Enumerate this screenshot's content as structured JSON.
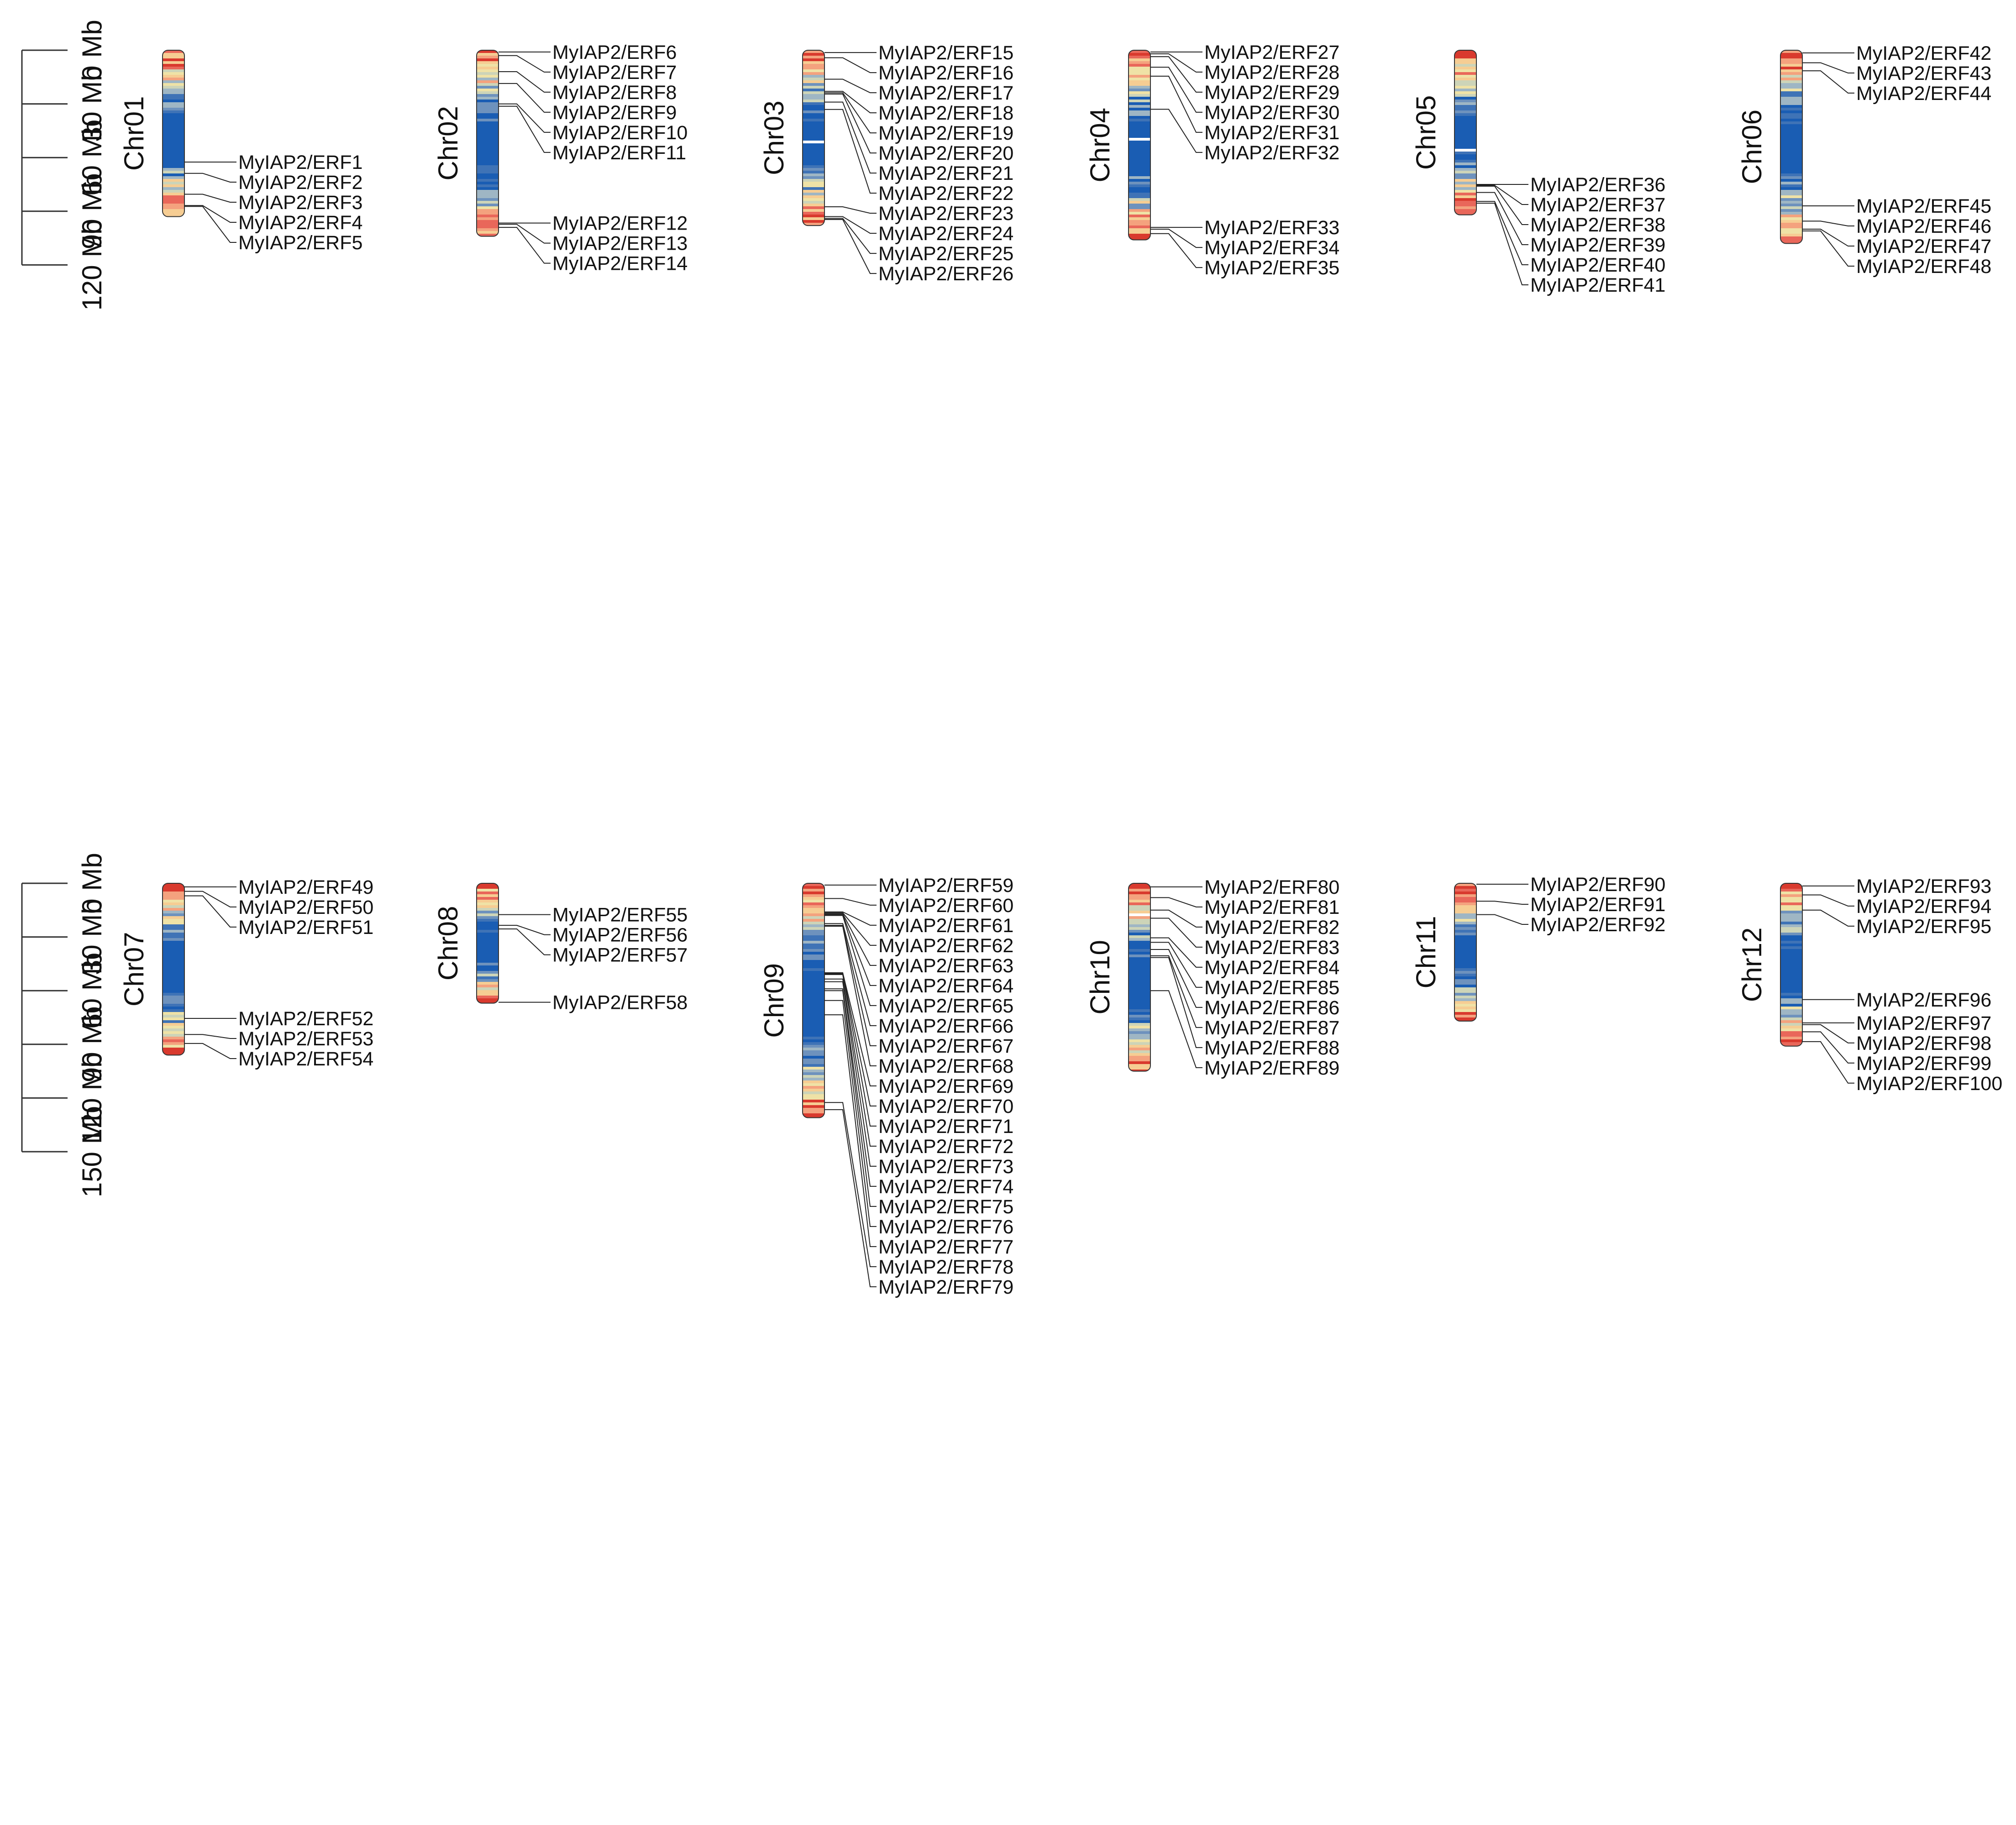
{
  "scales": [
    {
      "name": "top",
      "ticks": [
        "0 Mb",
        "30 Mb",
        "60 Mb",
        "90 Mb",
        "120 Mb"
      ]
    },
    {
      "name": "bottom",
      "ticks": [
        "0 Mb",
        "30 Mb",
        "60 Mb",
        "90 Mb",
        "120 Mb",
        "150 Mb"
      ]
    }
  ],
  "colors": {
    "density_palette": [
      "#1a5db3",
      "#3f73b6",
      "#6e92bd",
      "#9fb6c4",
      "#cdd4b8",
      "#efe2a6",
      "#f6cd93",
      "#f4a27e",
      "#e9675a",
      "#d93a2e"
    ],
    "gap": "#ffffff",
    "outline": "#333333",
    "text": "#111111"
  },
  "chromosomes": [
    {
      "name": "Chr01",
      "length_mb": 93,
      "genes": [
        {
          "label": "MyIAP2/ERF1",
          "pos_mb": 62.5
        },
        {
          "label": "MyIAP2/ERF2",
          "pos_mb": 68.8
        },
        {
          "label": "MyIAP2/ERF3",
          "pos_mb": 80.5
        },
        {
          "label": "MyIAP2/ERF4",
          "pos_mb": 86.8
        },
        {
          "label": "MyIAP2/ERF5",
          "pos_mb": 87.3
        }
      ]
    },
    {
      "name": "Chr02",
      "length_mb": 104,
      "genes": [
        {
          "label": "MyIAP2/ERF6",
          "pos_mb": 1.0
        },
        {
          "label": "MyIAP2/ERF7",
          "pos_mb": 3.0
        },
        {
          "label": "MyIAP2/ERF8",
          "pos_mb": 12.0
        },
        {
          "label": "MyIAP2/ERF9",
          "pos_mb": 18.6
        },
        {
          "label": "MyIAP2/ERF10",
          "pos_mb": 30.0
        },
        {
          "label": "MyIAP2/ERF11",
          "pos_mb": 31.3
        },
        {
          "label": "MyIAP2/ERF12",
          "pos_mb": 96.6
        },
        {
          "label": "MyIAP2/ERF13",
          "pos_mb": 97.3
        },
        {
          "label": "MyIAP2/ERF14",
          "pos_mb": 99.0
        }
      ]
    },
    {
      "name": "Chr03",
      "length_mb": 98,
      "genes": [
        {
          "label": "MyIAP2/ERF15",
          "pos_mb": 1.3
        },
        {
          "label": "MyIAP2/ERF16",
          "pos_mb": 4.2
        },
        {
          "label": "MyIAP2/ERF17",
          "pos_mb": 16.2
        },
        {
          "label": "MyIAP2/ERF18",
          "pos_mb": 23.0
        },
        {
          "label": "MyIAP2/ERF19",
          "pos_mb": 23.8
        },
        {
          "label": "MyIAP2/ERF20",
          "pos_mb": 24.5
        },
        {
          "label": "MyIAP2/ERF21",
          "pos_mb": 29.0
        },
        {
          "label": "MyIAP2/ERF22",
          "pos_mb": 33.1
        },
        {
          "label": "MyIAP2/ERF23",
          "pos_mb": 87.5
        },
        {
          "label": "MyIAP2/ERF24",
          "pos_mb": 93.0
        },
        {
          "label": "MyIAP2/ERF25",
          "pos_mb": 94.0
        },
        {
          "label": "MyIAP2/ERF26",
          "pos_mb": 94.6
        }
      ]
    },
    {
      "name": "Chr04",
      "length_mb": 106,
      "genes": [
        {
          "label": "MyIAP2/ERF27",
          "pos_mb": 1.0
        },
        {
          "label": "MyIAP2/ERF28",
          "pos_mb": 2.0
        },
        {
          "label": "MyIAP2/ERF29",
          "pos_mb": 3.6
        },
        {
          "label": "MyIAP2/ERF30",
          "pos_mb": 9.5
        },
        {
          "label": "MyIAP2/ERF31",
          "pos_mb": 14.5
        },
        {
          "label": "MyIAP2/ERF32",
          "pos_mb": 33.0
        },
        {
          "label": "MyIAP2/ERF33",
          "pos_mb": 99.0
        },
        {
          "label": "MyIAP2/ERF34",
          "pos_mb": 100.0
        },
        {
          "label": "MyIAP2/ERF35",
          "pos_mb": 102.5
        }
      ]
    },
    {
      "name": "Chr05",
      "length_mb": 92,
      "genes": [
        {
          "label": "MyIAP2/ERF36",
          "pos_mb": 75.0
        },
        {
          "label": "MyIAP2/ERF37",
          "pos_mb": 75.5
        },
        {
          "label": "MyIAP2/ERF38",
          "pos_mb": 76.0
        },
        {
          "label": "MyIAP2/ERF39",
          "pos_mb": 79.5
        },
        {
          "label": "MyIAP2/ERF40",
          "pos_mb": 84.5
        },
        {
          "label": "MyIAP2/ERF41",
          "pos_mb": 85.5
        }
      ]
    },
    {
      "name": "Chr06",
      "length_mb": 108,
      "genes": [
        {
          "label": "MyIAP2/ERF42",
          "pos_mb": 1.5
        },
        {
          "label": "MyIAP2/ERF43",
          "pos_mb": 7.0
        },
        {
          "label": "MyIAP2/ERF44",
          "pos_mb": 11.5
        },
        {
          "label": "MyIAP2/ERF45",
          "pos_mb": 87.0
        },
        {
          "label": "MyIAP2/ERF46",
          "pos_mb": 95.5
        },
        {
          "label": "MyIAP2/ERF47",
          "pos_mb": 100.0
        },
        {
          "label": "MyIAP2/ERF48",
          "pos_mb": 101.0
        }
      ]
    },
    {
      "name": "Chr07",
      "length_mb": 96,
      "genes": [
        {
          "label": "MyIAP2/ERF49",
          "pos_mb": 2.0
        },
        {
          "label": "MyIAP2/ERF50",
          "pos_mb": 4.5
        },
        {
          "label": "MyIAP2/ERF51",
          "pos_mb": 7.0
        },
        {
          "label": "MyIAP2/ERF52",
          "pos_mb": 75.5
        },
        {
          "label": "MyIAP2/ERF53",
          "pos_mb": 84.5
        },
        {
          "label": "MyIAP2/ERF54",
          "pos_mb": 89.5
        }
      ]
    },
    {
      "name": "Chr08",
      "length_mb": 67,
      "genes": [
        {
          "label": "MyIAP2/ERF55",
          "pos_mb": 17.5
        },
        {
          "label": "MyIAP2/ERF56",
          "pos_mb": 23.5
        },
        {
          "label": "MyIAP2/ERF57",
          "pos_mb": 25.5
        },
        {
          "label": "MyIAP2/ERF58",
          "pos_mb": 66.5
        }
      ]
    },
    {
      "name": "Chr09",
      "length_mb": 131,
      "genes": [
        {
          "label": "MyIAP2/ERF59",
          "pos_mb": 1.0
        },
        {
          "label": "MyIAP2/ERF60",
          "pos_mb": 8.5
        },
        {
          "label": "MyIAP2/ERF61",
          "pos_mb": 16.0
        },
        {
          "label": "MyIAP2/ERF62",
          "pos_mb": 16.5
        },
        {
          "label": "MyIAP2/ERF63",
          "pos_mb": 17.0
        },
        {
          "label": "MyIAP2/ERF64",
          "pos_mb": 17.5
        },
        {
          "label": "MyIAP2/ERF65",
          "pos_mb": 18.0
        },
        {
          "label": "MyIAP2/ERF66",
          "pos_mb": 22.5
        },
        {
          "label": "MyIAP2/ERF67",
          "pos_mb": 23.5
        },
        {
          "label": "MyIAP2/ERF68",
          "pos_mb": 24.0
        },
        {
          "label": "MyIAP2/ERF69",
          "pos_mb": 50.0
        },
        {
          "label": "MyIAP2/ERF70",
          "pos_mb": 50.5
        },
        {
          "label": "MyIAP2/ERF71",
          "pos_mb": 51.0
        },
        {
          "label": "MyIAP2/ERF72",
          "pos_mb": 53.5
        },
        {
          "label": "MyIAP2/ERF73",
          "pos_mb": 55.0
        },
        {
          "label": "MyIAP2/ERF74",
          "pos_mb": 59.0
        },
        {
          "label": "MyIAP2/ERF75",
          "pos_mb": 60.0
        },
        {
          "label": "MyIAP2/ERF76",
          "pos_mb": 65.5
        },
        {
          "label": "MyIAP2/ERF77",
          "pos_mb": 73.5
        },
        {
          "label": "MyIAP2/ERF78",
          "pos_mb": 122.5
        },
        {
          "label": "MyIAP2/ERF79",
          "pos_mb": 126.5
        }
      ]
    },
    {
      "name": "Chr10",
      "length_mb": 105,
      "genes": [
        {
          "label": "MyIAP2/ERF80",
          "pos_mb": 2.0
        },
        {
          "label": "MyIAP2/ERF81",
          "pos_mb": 8.0
        },
        {
          "label": "MyIAP2/ERF82",
          "pos_mb": 15.0
        },
        {
          "label": "MyIAP2/ERF83",
          "pos_mb": 19.5
        },
        {
          "label": "MyIAP2/ERF84",
          "pos_mb": 30.5
        },
        {
          "label": "MyIAP2/ERF85",
          "pos_mb": 33.0
        },
        {
          "label": "MyIAP2/ERF86",
          "pos_mb": 37.0
        },
        {
          "label": "MyIAP2/ERF87",
          "pos_mb": 40.5
        },
        {
          "label": "MyIAP2/ERF88",
          "pos_mb": 41.5
        },
        {
          "label": "MyIAP2/ERF89",
          "pos_mb": 60.0
        }
      ]
    },
    {
      "name": "Chr11",
      "length_mb": 77,
      "genes": [
        {
          "label": "MyIAP2/ERF90",
          "pos_mb": 0.5
        },
        {
          "label": "MyIAP2/ERF91",
          "pos_mb": 10.0
        },
        {
          "label": "MyIAP2/ERF92",
          "pos_mb": 17.5
        }
      ]
    },
    {
      "name": "Chr12",
      "length_mb": 91,
      "genes": [
        {
          "label": "MyIAP2/ERF93",
          "pos_mb": 1.5
        },
        {
          "label": "MyIAP2/ERF94",
          "pos_mb": 6.5
        },
        {
          "label": "MyIAP2/ERF95",
          "pos_mb": 15.0
        },
        {
          "label": "MyIAP2/ERF96",
          "pos_mb": 65.0
        },
        {
          "label": "MyIAP2/ERF97",
          "pos_mb": 78.0
        },
        {
          "label": "MyIAP2/ERF98",
          "pos_mb": 79.0
        },
        {
          "label": "MyIAP2/ERF99",
          "pos_mb": 83.0
        },
        {
          "label": "MyIAP2/ERF100",
          "pos_mb": 88.5
        }
      ]
    }
  ]
}
